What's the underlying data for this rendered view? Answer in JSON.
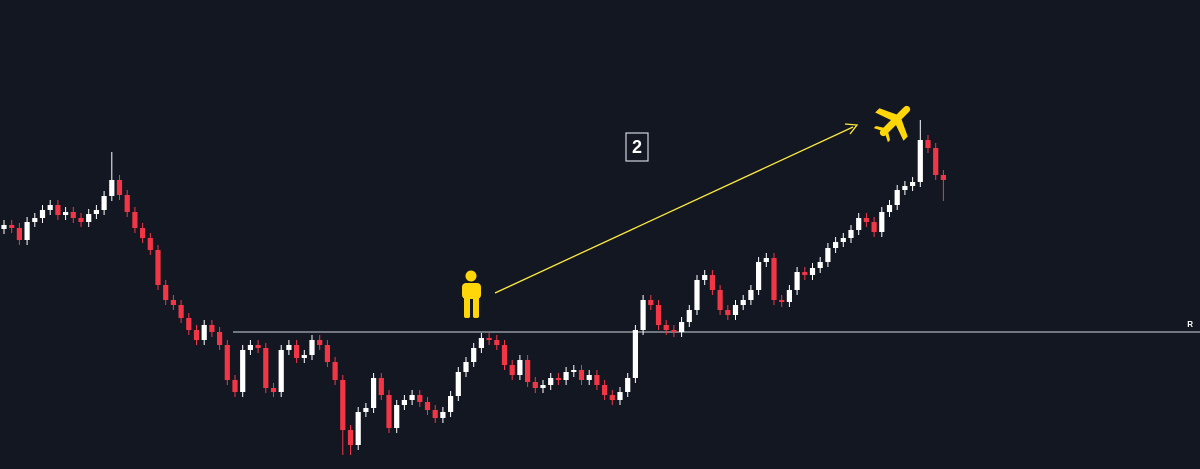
{
  "chart_data": {
    "type": "candlestick",
    "up_color": "#ffffff",
    "down_color": "#f23645",
    "background": "#131722",
    "ylim": [
      0,
      469
    ],
    "level": 137,
    "level_label": "R",
    "annotation": "2",
    "open": [
      240,
      244,
      241,
      229,
      247,
      251,
      259,
      264,
      254,
      257,
      251,
      247,
      255,
      259,
      273,
      289,
      274,
      257,
      241,
      231,
      219,
      184,
      169,
      164,
      151,
      139,
      129,
      144,
      137,
      124,
      89,
      77,
      119,
      124,
      121,
      81,
      77,
      119,
      124,
      111,
      114,
      129,
      124,
      107,
      89,
      39,
      24,
      57,
      61,
      91,
      74,
      41,
      64,
      69,
      74,
      67,
      59,
      51,
      57,
      73,
      97,
      107,
      121,
      131,
      129,
      124,
      104,
      94,
      109,
      87,
      81,
      84,
      91,
      89,
      97,
      99,
      89,
      94,
      84,
      74,
      69,
      77,
      91,
      139,
      169,
      164,
      144,
      139,
      137,
      147,
      159,
      189,
      194,
      179,
      159,
      154,
      164,
      169,
      179,
      207,
      211,
      169,
      167,
      179,
      197,
      194,
      201,
      207,
      221,
      227,
      231,
      239,
      251,
      247,
      237,
      257,
      264,
      279,
      283,
      287,
      329,
      321,
      294
    ],
    "high": [
      249,
      249,
      246,
      252,
      256,
      264,
      269,
      269,
      262,
      262,
      256,
      260,
      264,
      278,
      317,
      294,
      279,
      262,
      246,
      236,
      224,
      189,
      174,
      169,
      156,
      144,
      149,
      149,
      142,
      129,
      94,
      124,
      129,
      129,
      126,
      86,
      124,
      129,
      129,
      119,
      134,
      134,
      129,
      112,
      94,
      44,
      62,
      66,
      96,
      96,
      79,
      69,
      74,
      79,
      79,
      72,
      64,
      62,
      78,
      102,
      112,
      126,
      136,
      136,
      134,
      129,
      109,
      114,
      114,
      92,
      89,
      96,
      96,
      102,
      104,
      104,
      99,
      99,
      89,
      79,
      82,
      96,
      144,
      174,
      174,
      169,
      149,
      144,
      152,
      164,
      194,
      199,
      199,
      184,
      164,
      169,
      174,
      184,
      212,
      216,
      216,
      174,
      184,
      202,
      202,
      206,
      212,
      226,
      232,
      236,
      244,
      256,
      256,
      252,
      262,
      269,
      284,
      288,
      292,
      349,
      334,
      326,
      299
    ],
    "low": [
      235,
      236,
      224,
      224,
      242,
      246,
      254,
      249,
      249,
      246,
      242,
      242,
      250,
      254,
      268,
      269,
      252,
      236,
      226,
      214,
      179,
      164,
      159,
      146,
      134,
      124,
      124,
      132,
      119,
      84,
      72,
      72,
      114,
      116,
      76,
      72,
      72,
      114,
      106,
      106,
      109,
      119,
      102,
      84,
      14,
      14,
      19,
      52,
      56,
      69,
      36,
      36,
      59,
      64,
      62,
      54,
      46,
      46,
      52,
      68,
      92,
      102,
      116,
      124,
      119,
      99,
      89,
      89,
      82,
      76,
      76,
      79,
      84,
      84,
      92,
      84,
      84,
      79,
      69,
      64,
      64,
      72,
      86,
      134,
      159,
      139,
      134,
      132,
      132,
      142,
      154,
      184,
      174,
      154,
      149,
      149,
      159,
      164,
      174,
      202,
      164,
      162,
      162,
      174,
      189,
      189,
      196,
      202,
      216,
      222,
      226,
      234,
      242,
      232,
      232,
      252,
      259,
      274,
      278,
      282,
      316,
      289,
      268
    ],
    "close": [
      244,
      241,
      229,
      247,
      251,
      259,
      264,
      254,
      257,
      251,
      247,
      255,
      259,
      273,
      289,
      274,
      257,
      241,
      231,
      219,
      184,
      169,
      164,
      151,
      139,
      129,
      144,
      137,
      124,
      89,
      77,
      119,
      124,
      121,
      81,
      77,
      119,
      124,
      111,
      114,
      129,
      124,
      107,
      89,
      39,
      24,
      57,
      61,
      91,
      74,
      41,
      64,
      69,
      74,
      67,
      59,
      51,
      57,
      73,
      97,
      107,
      121,
      131,
      129,
      124,
      104,
      94,
      109,
      87,
      81,
      84,
      91,
      89,
      97,
      99,
      89,
      94,
      84,
      74,
      69,
      77,
      91,
      139,
      169,
      164,
      144,
      139,
      137,
      147,
      159,
      189,
      194,
      179,
      159,
      154,
      164,
      169,
      179,
      207,
      211,
      169,
      167,
      179,
      197,
      194,
      201,
      207,
      221,
      227,
      231,
      239,
      251,
      247,
      237,
      257,
      264,
      279,
      283,
      287,
      329,
      321,
      294,
      289
    ]
  }
}
